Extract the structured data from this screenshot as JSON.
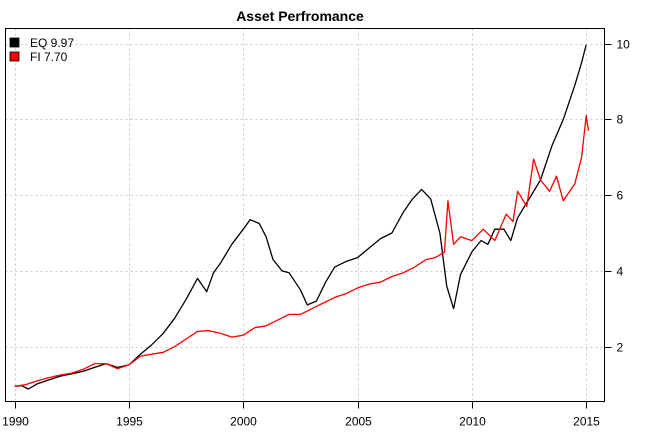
{
  "chart_data": {
    "type": "line",
    "title": "Asset Perfromance",
    "xlabel": "",
    "ylabel": "",
    "xlim": [
      1989.6,
      2015.8
    ],
    "ylim": [
      0.55,
      10.4
    ],
    "x_ticks": [
      "1990",
      "1995",
      "2000",
      "2005",
      "2010",
      "2015"
    ],
    "y_ticks": [
      "2",
      "4",
      "6",
      "8",
      "10"
    ],
    "grid": true,
    "legend_position": "top-left",
    "series": [
      {
        "name": "EQ 9.97",
        "color": "#000000",
        "x": [
          1990.0,
          1990.3,
          1990.6,
          1991.0,
          1991.5,
          1992.0,
          1992.5,
          1993.0,
          1993.5,
          1994.0,
          1994.5,
          1995.0,
          1995.5,
          1996.0,
          1996.5,
          1997.0,
          1997.5,
          1998.0,
          1998.4,
          1998.7,
          1999.0,
          1999.5,
          2000.0,
          2000.3,
          2000.7,
          2001.0,
          2001.3,
          2001.7,
          2002.0,
          2002.5,
          2002.8,
          2003.2,
          2003.6,
          2004.0,
          2004.5,
          2005.0,
          2005.5,
          2006.0,
          2006.5,
          2007.0,
          2007.4,
          2007.8,
          2008.2,
          2008.6,
          2008.9,
          2009.2,
          2009.5,
          2010.0,
          2010.4,
          2010.7,
          2011.0,
          2011.4,
          2011.7,
          2012.0,
          2012.5,
          2013.0,
          2013.5,
          2014.0,
          2014.5,
          2014.8,
          2015.0
        ],
        "values": [
          0.95,
          0.97,
          0.88,
          1.02,
          1.12,
          1.22,
          1.28,
          1.35,
          1.45,
          1.55,
          1.45,
          1.52,
          1.8,
          2.05,
          2.35,
          2.75,
          3.25,
          3.8,
          3.45,
          3.95,
          4.2,
          4.7,
          5.1,
          5.35,
          5.25,
          4.9,
          4.3,
          4.0,
          3.95,
          3.5,
          3.1,
          3.2,
          3.7,
          4.1,
          4.25,
          4.35,
          4.6,
          4.85,
          5.0,
          5.55,
          5.9,
          6.15,
          5.9,
          5.0,
          3.6,
          3.0,
          3.9,
          4.5,
          4.8,
          4.7,
          5.1,
          5.1,
          4.8,
          5.4,
          5.9,
          6.4,
          7.3,
          8.0,
          8.9,
          9.5,
          9.97
        ]
      },
      {
        "name": "FI 7.70",
        "color": "#ff0000",
        "x": [
          1990.0,
          1990.5,
          1991.0,
          1991.5,
          1992.0,
          1992.5,
          1993.0,
          1993.5,
          1994.0,
          1994.5,
          1995.0,
          1995.5,
          1996.0,
          1996.5,
          1997.0,
          1997.5,
          1998.0,
          1998.5,
          1999.0,
          1999.5,
          2000.0,
          2000.5,
          2001.0,
          2001.5,
          2002.0,
          2002.5,
          2003.0,
          2003.5,
          2004.0,
          2004.5,
          2005.0,
          2005.5,
          2006.0,
          2006.5,
          2007.0,
          2007.5,
          2008.0,
          2008.4,
          2008.8,
          2008.95,
          2009.2,
          2009.5,
          2010.0,
          2010.5,
          2011.0,
          2011.5,
          2011.8,
          2012.0,
          2012.4,
          2012.7,
          2013.0,
          2013.4,
          2013.7,
          2014.0,
          2014.5,
          2014.8,
          2015.0,
          2015.1
        ],
        "values": [
          0.95,
          1.0,
          1.1,
          1.18,
          1.25,
          1.3,
          1.4,
          1.55,
          1.55,
          1.42,
          1.52,
          1.75,
          1.8,
          1.85,
          2.0,
          2.2,
          2.4,
          2.42,
          2.35,
          2.25,
          2.3,
          2.5,
          2.55,
          2.7,
          2.85,
          2.85,
          3.0,
          3.15,
          3.3,
          3.4,
          3.55,
          3.65,
          3.7,
          3.85,
          3.95,
          4.1,
          4.3,
          4.35,
          4.5,
          5.85,
          4.7,
          4.9,
          4.8,
          5.1,
          4.8,
          5.5,
          5.3,
          6.1,
          5.7,
          6.95,
          6.4,
          6.1,
          6.5,
          5.85,
          6.3,
          7.0,
          8.1,
          7.7
        ]
      }
    ]
  }
}
